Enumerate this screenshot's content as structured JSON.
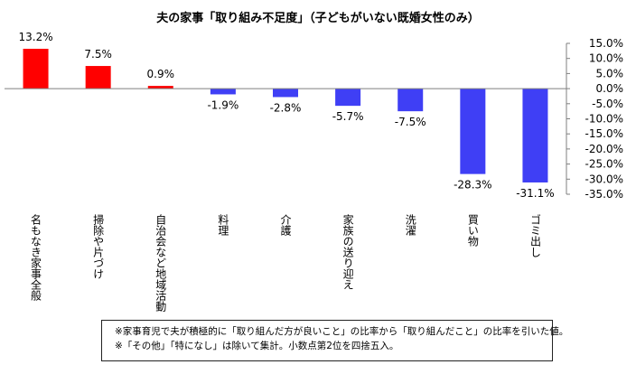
{
  "chart_data": {
    "type": "bar",
    "title": "夫の家事「取り組み不足度」（子どもがいない既婚女性のみ）",
    "categories": [
      "名もなき家事全般",
      "掃除や片づけ",
      "自治会など地域活動",
      "料理",
      "介護",
      "家族の送り迎え",
      "洗濯",
      "買い物",
      "ゴミ出し"
    ],
    "values": [
      13.2,
      7.5,
      0.9,
      -1.9,
      -2.8,
      -5.7,
      -7.5,
      -28.3,
      -31.1
    ],
    "data_labels": [
      "13.2%",
      "7.5%",
      "0.9%",
      "-1.9%",
      "-2.8%",
      "-5.7%",
      "-7.5%",
      "-28.3%",
      "-31.1%"
    ],
    "ylim": [
      -35,
      15
    ],
    "yticks": [
      15,
      10,
      5,
      0,
      -5,
      -10,
      -15,
      -20,
      -25,
      -30,
      -35
    ],
    "ytick_labels": [
      "15.0%",
      "10.0%",
      "5.0%",
      "0.0%",
      "-5.0%",
      "-10.0%",
      "-15.0%",
      "-20.0%",
      "-25.0%",
      "-30.0%",
      "-35.0%"
    ],
    "y_axis_position": "right",
    "grid": false,
    "colors": {
      "positive": "#ff0000",
      "negative": "#3f3ff5",
      "axis": "#7f7f7f"
    }
  },
  "notes": [
    "※家事育児で夫が積極的に「取り組んだ方が良いこと」の比率から「取り組んだこと」の比率を引いた値。",
    "※「その他」「特になし」は除いて集計。小数点第2位を四捨五入。"
  ]
}
